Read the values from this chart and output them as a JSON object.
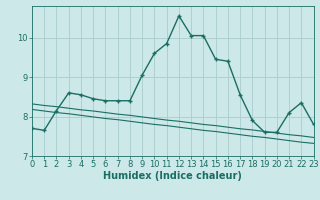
{
  "xlabel": "Humidex (Indice chaleur)",
  "background_color": "#cce8e8",
  "grid_color": "#aacccc",
  "line_color": "#1a6e64",
  "x_data": [
    0,
    1,
    2,
    3,
    4,
    5,
    6,
    7,
    8,
    9,
    10,
    11,
    12,
    13,
    14,
    15,
    16,
    17,
    18,
    19,
    20,
    21,
    22,
    23
  ],
  "y_main": [
    7.7,
    7.65,
    8.15,
    8.6,
    8.55,
    8.45,
    8.4,
    8.4,
    8.4,
    9.05,
    9.6,
    9.85,
    10.55,
    10.05,
    10.05,
    9.45,
    9.4,
    8.55,
    7.9,
    7.6,
    7.6,
    8.1,
    8.35,
    7.8
  ],
  "y_reg1": [
    8.18,
    8.14,
    8.1,
    8.07,
    8.03,
    7.99,
    7.95,
    7.92,
    7.88,
    7.84,
    7.8,
    7.77,
    7.73,
    7.69,
    7.65,
    7.62,
    7.58,
    7.54,
    7.5,
    7.47,
    7.43,
    7.39,
    7.35,
    7.32
  ],
  "y_reg2": [
    8.32,
    8.28,
    8.25,
    8.21,
    8.17,
    8.14,
    8.1,
    8.06,
    8.03,
    7.99,
    7.95,
    7.91,
    7.88,
    7.84,
    7.8,
    7.77,
    7.73,
    7.69,
    7.66,
    7.62,
    7.58,
    7.54,
    7.51,
    7.47
  ],
  "xlim": [
    0,
    23
  ],
  "ylim": [
    7.0,
    10.8
  ],
  "yticks": [
    7,
    8,
    9,
    10
  ],
  "xticks": [
    0,
    1,
    2,
    3,
    4,
    5,
    6,
    7,
    8,
    9,
    10,
    11,
    12,
    13,
    14,
    15,
    16,
    17,
    18,
    19,
    20,
    21,
    22,
    23
  ],
  "tick_fontsize": 6,
  "xlabel_fontsize": 7
}
